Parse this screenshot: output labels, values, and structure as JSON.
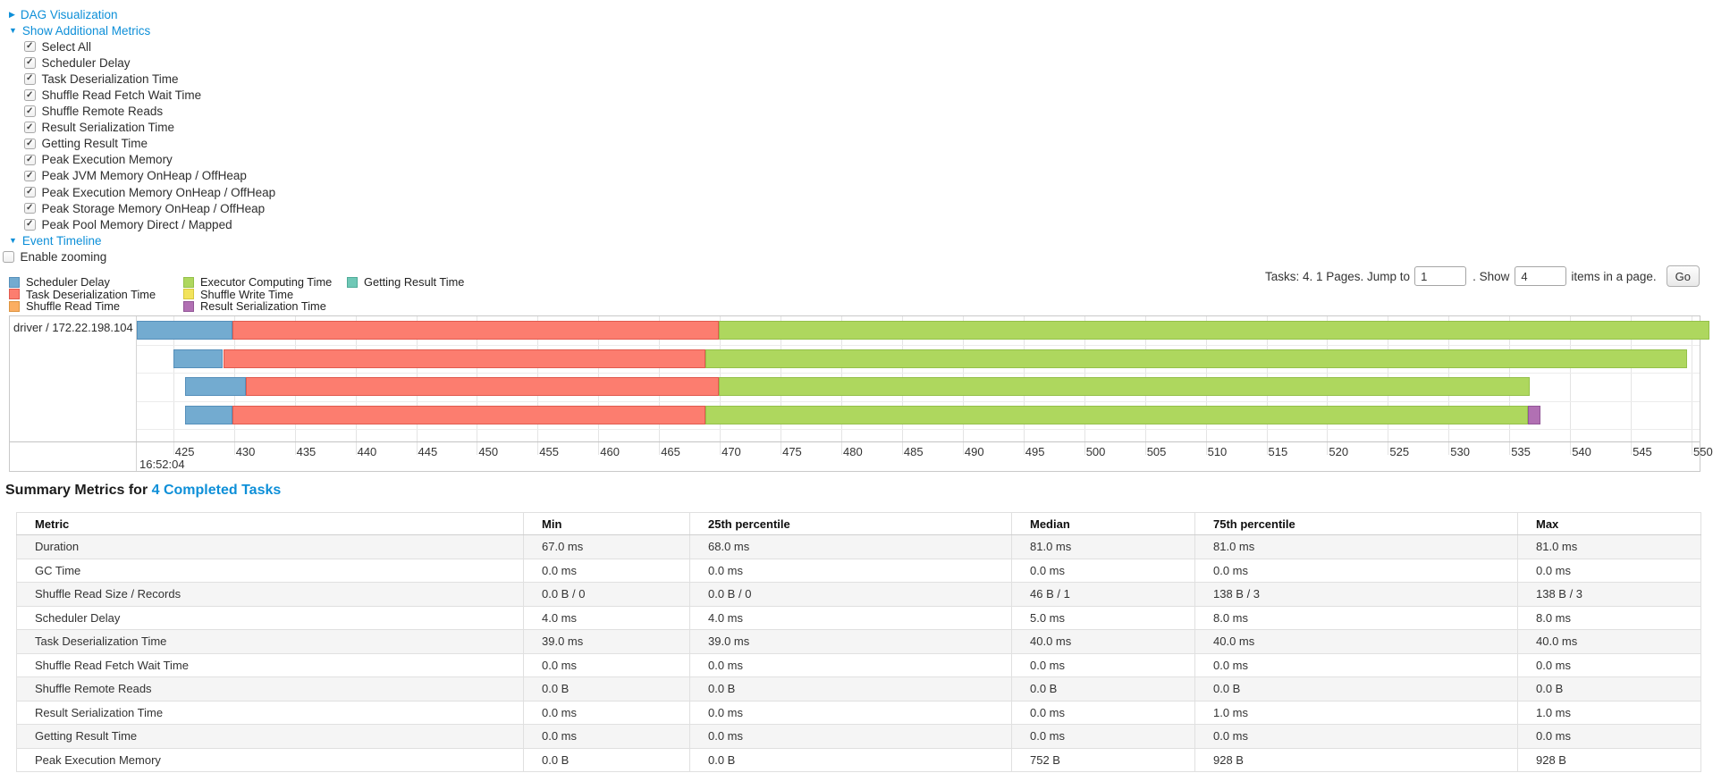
{
  "tree": {
    "dag_link": "DAG Visualization",
    "metrics_link": "Show Additional Metrics",
    "timeline_link": "Event Timeline"
  },
  "metric_checkboxes": [
    {
      "label": "Select All",
      "checked": true
    },
    {
      "label": "Scheduler Delay",
      "checked": true
    },
    {
      "label": "Task Deserialization Time",
      "checked": true
    },
    {
      "label": "Shuffle Read Fetch Wait Time",
      "checked": true
    },
    {
      "label": "Shuffle Remote Reads",
      "checked": true
    },
    {
      "label": "Result Serialization Time",
      "checked": true
    },
    {
      "label": "Getting Result Time",
      "checked": true
    },
    {
      "label": "Peak Execution Memory",
      "checked": true
    },
    {
      "label": "Peak JVM Memory OnHeap / OffHeap",
      "checked": true
    },
    {
      "label": "Peak Execution Memory OnHeap / OffHeap",
      "checked": true
    },
    {
      "label": "Peak Storage Memory OnHeap / OffHeap",
      "checked": true
    },
    {
      "label": "Peak Pool Memory Direct / Mapped",
      "checked": true
    }
  ],
  "enable_zooming": {
    "label": "Enable zooming",
    "checked": false
  },
  "legend": {
    "columns": [
      [
        {
          "label": "Scheduler Delay",
          "key": "scheduler_delay"
        },
        {
          "label": "Task Deserialization Time",
          "key": "task_deserialization"
        },
        {
          "label": "Shuffle Read Time",
          "key": "shuffle_read"
        }
      ],
      [
        {
          "label": "Executor Computing Time",
          "key": "executor_computing"
        },
        {
          "label": "Shuffle Write Time",
          "key": "shuffle_write"
        },
        {
          "label": "Result Serialization Time",
          "key": "result_serialization"
        }
      ],
      [
        {
          "label": "Getting Result Time",
          "key": "getting_result"
        }
      ]
    ]
  },
  "pagination": {
    "tasks_label": "Tasks: 4. 1 Pages. Jump to",
    "jump_value": "1",
    "show_label": ". Show",
    "show_value": "4",
    "items_label": "items in a page.",
    "go_label": "Go"
  },
  "timeline": {
    "group_label": "driver / 172.22.198.104",
    "axis": {
      "min": 422.0,
      "max": 550.66,
      "tick_start": 425,
      "tick_end": 550,
      "tick_step": 5,
      "major_label": "16:52:04"
    },
    "colors": {
      "scheduler_delay": {
        "fill": "#73abd0",
        "border": "#558fba"
      },
      "task_deserialization": {
        "fill": "#fc7d6f",
        "border": "#e05a4e"
      },
      "shuffle_read": {
        "fill": "#fbae62",
        "border": "#dd9440"
      },
      "executor_computing": {
        "fill": "#aed75e",
        "border": "#94c04a"
      },
      "shuffle_write": {
        "fill": "#f2e35c",
        "border": "#d6c83e"
      },
      "result_serialization": {
        "fill": "#b170b3",
        "border": "#925697"
      },
      "getting_result": {
        "fill": "#6fc8b6",
        "border": "#4fab98"
      }
    },
    "tasks": [
      {
        "segments": [
          {
            "type": "scheduler_delay",
            "start": 422.0,
            "end": 429.9
          },
          {
            "type": "task_deserialization",
            "start": 429.9,
            "end": 469.9
          },
          {
            "type": "executor_computing",
            "start": 469.9,
            "end": 551.5
          }
        ]
      },
      {
        "segments": [
          {
            "type": "scheduler_delay",
            "start": 425.0,
            "end": 429.1
          },
          {
            "type": "task_deserialization",
            "start": 429.1,
            "end": 468.8
          },
          {
            "type": "executor_computing",
            "start": 468.8,
            "end": 549.6
          }
        ]
      },
      {
        "segments": [
          {
            "type": "scheduler_delay",
            "start": 426.0,
            "end": 431.0
          },
          {
            "type": "task_deserialization",
            "start": 431.0,
            "end": 469.9
          },
          {
            "type": "executor_computing",
            "start": 469.9,
            "end": 536.7
          }
        ]
      },
      {
        "segments": [
          {
            "type": "scheduler_delay",
            "start": 426.0,
            "end": 429.9
          },
          {
            "type": "task_deserialization",
            "start": 429.9,
            "end": 468.8
          },
          {
            "type": "executor_computing",
            "start": 468.8,
            "end": 536.5
          },
          {
            "type": "result_serialization",
            "start": 536.5,
            "end": 537.6
          }
        ]
      }
    ]
  },
  "summary": {
    "title_prefix": "Summary Metrics for",
    "title_link": "4 Completed Tasks",
    "table": {
      "headers": [
        "Metric",
        "Min",
        "25th percentile",
        "Median",
        "75th percentile",
        "Max"
      ],
      "rows": [
        {
          "metric": "Duration",
          "values": [
            "67.0 ms",
            "68.0 ms",
            "81.0 ms",
            "81.0 ms",
            "81.0 ms"
          ]
        },
        {
          "metric": "GC Time",
          "values": [
            "0.0 ms",
            "0.0 ms",
            "0.0 ms",
            "0.0 ms",
            "0.0 ms"
          ]
        },
        {
          "metric": "Shuffle Read Size / Records",
          "values": [
            "0.0 B / 0",
            "0.0 B / 0",
            "46 B / 1",
            "138 B / 3",
            "138 B / 3"
          ]
        },
        {
          "metric": "Scheduler Delay",
          "values": [
            "4.0 ms",
            "4.0 ms",
            "5.0 ms",
            "8.0 ms",
            "8.0 ms"
          ]
        },
        {
          "metric": "Task Deserialization Time",
          "values": [
            "39.0 ms",
            "39.0 ms",
            "40.0 ms",
            "40.0 ms",
            "40.0 ms"
          ]
        },
        {
          "metric": "Shuffle Read Fetch Wait Time",
          "values": [
            "0.0 ms",
            "0.0 ms",
            "0.0 ms",
            "0.0 ms",
            "0.0 ms"
          ]
        },
        {
          "metric": "Shuffle Remote Reads",
          "values": [
            "0.0 B",
            "0.0 B",
            "0.0 B",
            "0.0 B",
            "0.0 B"
          ]
        },
        {
          "metric": "Result Serialization Time",
          "values": [
            "0.0 ms",
            "0.0 ms",
            "0.0 ms",
            "1.0 ms",
            "1.0 ms"
          ]
        },
        {
          "metric": "Getting Result Time",
          "values": [
            "0.0 ms",
            "0.0 ms",
            "0.0 ms",
            "0.0 ms",
            "0.0 ms"
          ]
        },
        {
          "metric": "Peak Execution Memory",
          "values": [
            "0.0 B",
            "0.0 B",
            "752 B",
            "928 B",
            "928 B"
          ]
        }
      ]
    }
  }
}
